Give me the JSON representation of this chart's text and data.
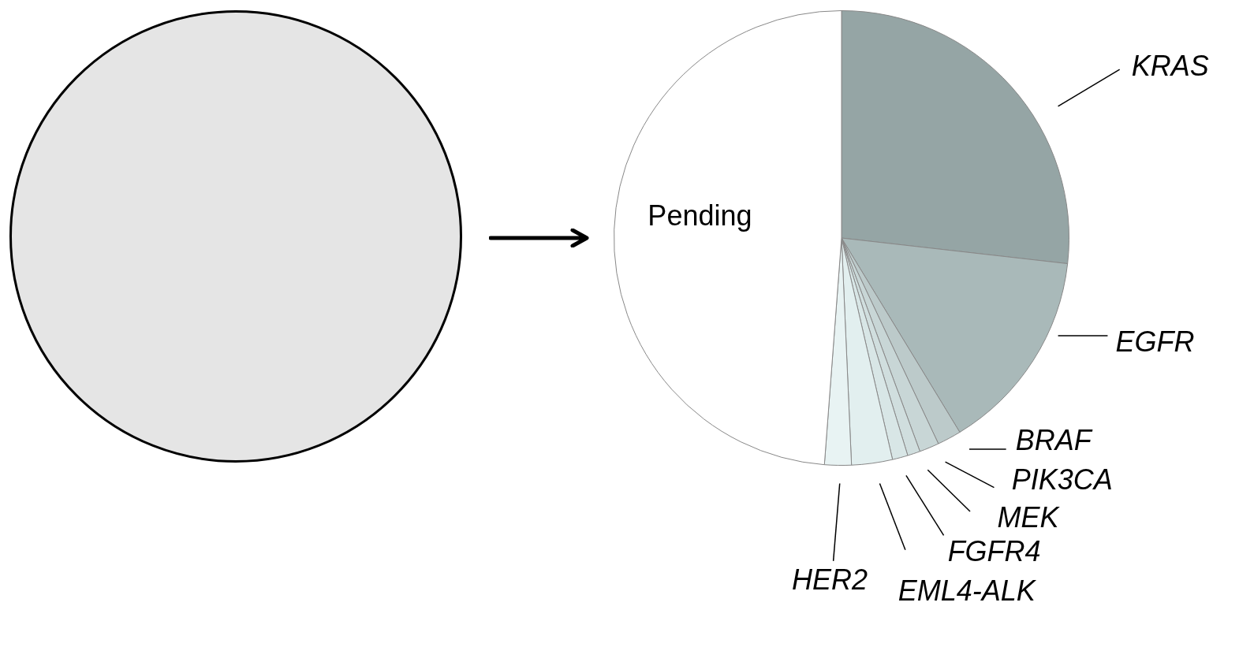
{
  "chart_data": {
    "type": "pie",
    "categories": [
      "KRAS",
      "EGFR",
      "BRAF",
      "PIK3CA",
      "MEK",
      "FGFR4",
      "EML4-ALK",
      "HER2",
      "Pending"
    ],
    "values": [
      26.8,
      14.5,
      1.7,
      1.4,
      0.9,
      1.1,
      2.9,
      1.9,
      48.8
    ],
    "colors": [
      "#95a5a5",
      "#a9b9b9",
      "#bccaca",
      "#c8d6d6",
      "#d0dede",
      "#d8e6e6",
      "#e2efef",
      "#e8f3f3",
      "#ffffff"
    ],
    "legend": false
  }
}
